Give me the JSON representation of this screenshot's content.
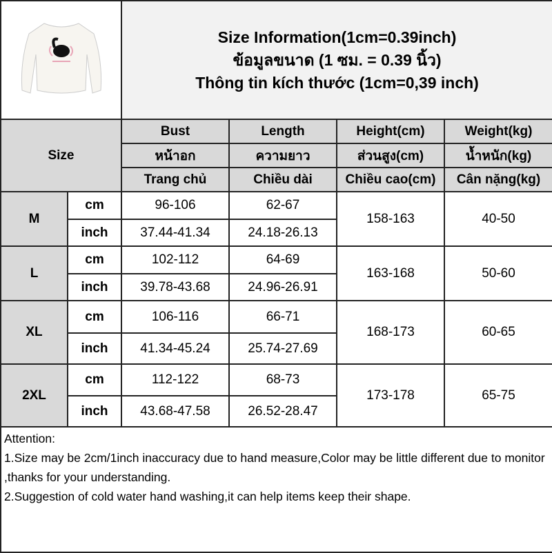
{
  "title_lines": [
    "Size Information(1cm=0.39inch)",
    "ข้อมูลขนาด (1 ซม. = 0.39 นิ้ว)",
    "Thông tin kích thước (1cm=0,39 inch)"
  ],
  "header": {
    "size": "Size",
    "columns": [
      [
        "Bust",
        "หน้าอก",
        "Trang chủ"
      ],
      [
        "Length",
        "ความยาว",
        "Chiều dài"
      ],
      [
        "Height(cm)",
        "ส่วนสูง(cm)",
        "Chiều cao(cm)"
      ],
      [
        "Weight(kg)",
        "น้ำหนัก(kg)",
        "Cân nặng(kg)"
      ]
    ]
  },
  "rows": [
    {
      "size": "M",
      "cm": {
        "unit": "cm",
        "bust": "96-106",
        "length": "62-67"
      },
      "inch": {
        "unit": "inch",
        "bust": "37.44-41.34",
        "length": "24.18-26.13"
      },
      "height": "158-163",
      "weight": "40-50"
    },
    {
      "size": "L",
      "cm": {
        "unit": "cm",
        "bust": "102-112",
        "length": "64-69"
      },
      "inch": {
        "unit": "inch",
        "bust": "39.78-43.68",
        "length": "24.96-26.91"
      },
      "height": "163-168",
      "weight": "50-60"
    },
    {
      "size": "XL",
      "cm": {
        "unit": "cm",
        "bust": "106-116",
        "length": "66-71"
      },
      "inch": {
        "unit": "inch",
        "bust": "41.34-45.24",
        "length": "25.74-27.69"
      },
      "height": "168-173",
      "weight": "60-65"
    },
    {
      "size": "2XL",
      "cm": {
        "unit": "cm",
        "bust": "112-122",
        "length": "68-73"
      },
      "inch": {
        "unit": "inch",
        "bust": "43.68-47.58",
        "length": "26.52-28.47"
      },
      "height": "173-178",
      "weight": "65-75"
    }
  ],
  "notes": [
    "Attention:",
    "1.Size may be 2cm/1inch inaccuracy due to hand measure,Color may be little different due to monitor ,thanks for your understanding.",
    "2.Suggestion of cold water hand washing,it can help items keep their shape."
  ],
  "product_image": "white-sweatshirt-with-black-cat-print"
}
